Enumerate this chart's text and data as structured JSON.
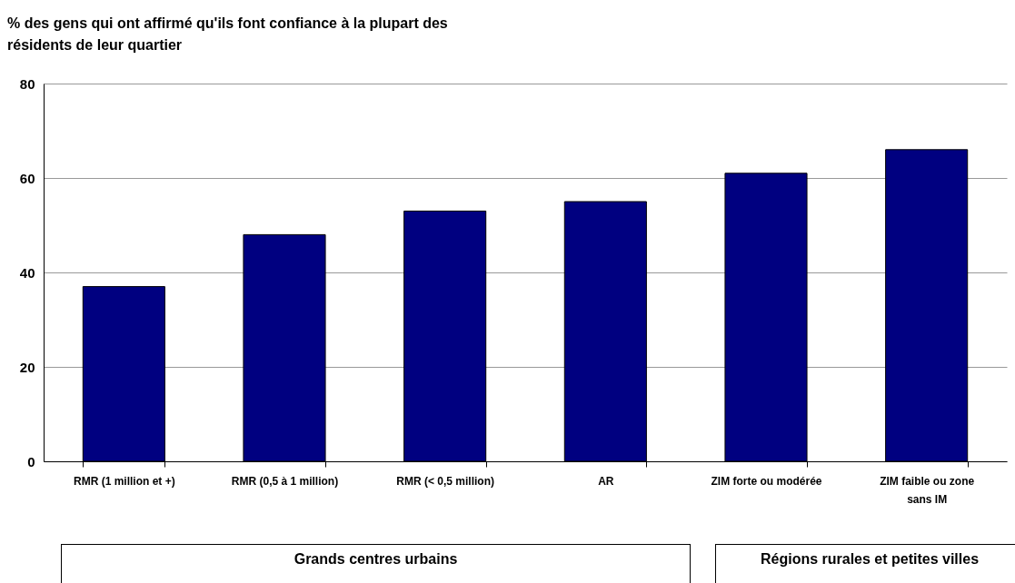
{
  "chart_data": {
    "type": "bar",
    "title": "% des gens qui ont affirmé qu'ils font confiance à la plupart des résidents de leur quartier",
    "categories": [
      "RMR (1 million et +)",
      "RMR (0,5 à 1 million)",
      "RMR (< 0,5 million)",
      "AR",
      "ZIM forte ou modérée",
      "ZIM faible ou zone sans IM"
    ],
    "values": [
      37,
      48,
      53,
      55,
      61,
      66
    ],
    "color": "#000080",
    "ylim": [
      0,
      80
    ],
    "yticks": [
      0,
      20,
      40,
      60,
      80
    ],
    "grid": "y",
    "annotations": [
      "Grands centres urbains",
      "Régions rurales et petites villes"
    ]
  }
}
